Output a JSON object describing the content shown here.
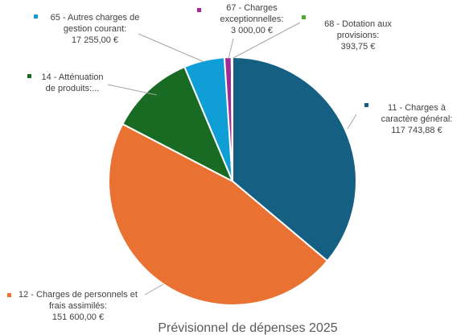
{
  "chart_data": {
    "type": "pie",
    "title": "Prévisionnel de dépenses 2025",
    "legend": "none",
    "slices": [
      {
        "category": "11 - Charges à caractère général",
        "label_lines": [
          "11 - Charges à",
          "caractère général:"
        ],
        "value_text": "117 743,88 €",
        "value": 117743.88,
        "color": "#156082"
      },
      {
        "category": "12 - Charges de personnels et frais assimilés",
        "label_lines": [
          "12 - Charges de personnels et",
          "frais assimilés:"
        ],
        "value_text": "151 600,00 €",
        "value": 151600.0,
        "color": "#E97132"
      },
      {
        "category": "14 - Atténuation de produits",
        "label_lines": [
          "14 - Atténuation",
          "de produits:..."
        ],
        "value_text": "",
        "value": 36000,
        "color": "#196B24"
      },
      {
        "category": "65 - Autres charges de gestion courant",
        "label_lines": [
          "65 - Autres charges de",
          "gestion courant:"
        ],
        "value_text": "17 255,00 €",
        "value": 17255.0,
        "color": "#0F9ED5"
      },
      {
        "category": "67 - Charges exceptionnelles",
        "label_lines": [
          "67 - Charges",
          "exceptionnelles:"
        ],
        "value_text": "3 000,00 €",
        "value": 3000.0,
        "color": "#A02B93"
      },
      {
        "category": "68 - Dotation aux provisions",
        "label_lines": [
          "68 - Dotation aux",
          "provisions:"
        ],
        "value_text": "393,75 €",
        "value": 393.75,
        "color": "#4EA72E"
      }
    ]
  }
}
